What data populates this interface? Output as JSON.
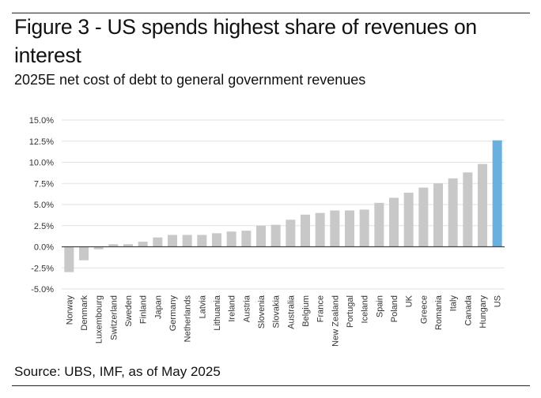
{
  "title": "Figure 3 - US spends highest share of revenues on interest",
  "subtitle": "2025E net cost of debt to general government revenues",
  "source": "Source: UBS, IMF, as of May 2025",
  "colors": {
    "bar": "#c8c8c8",
    "highlight": "#6ab0de",
    "grid": "#e2e2e2",
    "axis": "#444444"
  },
  "chart_data": {
    "type": "bar",
    "title": "2025E net cost of debt to general government revenues",
    "xlabel": "",
    "ylabel": "",
    "ylim": [
      -5,
      15
    ],
    "grid": true,
    "yticks": [
      15,
      12.5,
      10,
      7.5,
      5,
      2.5,
      0,
      -2.5,
      -5
    ],
    "ytick_labels": [
      "15.0%",
      "12.5%",
      "10.0%",
      "7.5%",
      "5.0%",
      "2.5%",
      "0.0%",
      "-2.5%",
      "-5.0%"
    ],
    "highlight": "US",
    "categories": [
      "Norway",
      "Denmark",
      "Luxembourg",
      "Switzerland",
      "Sweden",
      "Finland",
      "Japan",
      "Germany",
      "Netherlands",
      "Latvia",
      "Lithuania",
      "Ireland",
      "Austria",
      "Slovenia",
      "Slovakia",
      "Australia",
      "Belgium",
      "France",
      "New Zealand",
      "Portugal",
      "Iceland",
      "Spain",
      "Poland",
      "UK",
      "Greece",
      "Romania",
      "Italy",
      "Canada",
      "Hungary",
      "US"
    ],
    "values": [
      -3.0,
      -1.6,
      -0.3,
      0.3,
      0.3,
      0.6,
      1.1,
      1.4,
      1.4,
      1.4,
      1.6,
      1.8,
      1.9,
      2.5,
      2.6,
      3.2,
      3.8,
      4.0,
      4.3,
      4.3,
      4.4,
      5.2,
      5.8,
      6.4,
      7.0,
      7.5,
      8.1,
      8.8,
      9.8,
      12.6
    ]
  }
}
